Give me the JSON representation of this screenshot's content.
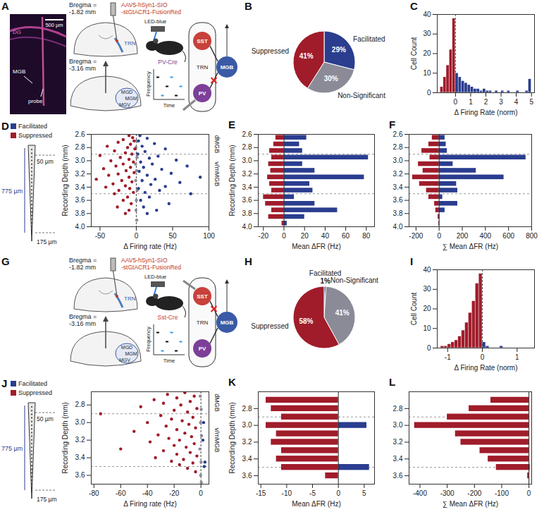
{
  "diagrams": [
    {
      "panel": "A",
      "image_labels": {
        "region": "DG",
        "target": "MGB",
        "track": "probe"
      },
      "scale_bar": "500 µm",
      "bregma": [
        "Bregma = -1.82 mm",
        "Bregma = -3.16 mm"
      ],
      "virus": [
        "AAV5-hSyn1-SIO",
        "-stGtACR1-FusionRed"
      ],
      "injection_site": "TRN",
      "subdivisions": [
        "MGD",
        "MGM",
        "MGV"
      ],
      "mouse_line": "PV-Cre",
      "light": "LED-blue",
      "raster_axes": [
        "Frequency",
        "Time"
      ],
      "circuit": {
        "nodes": [
          "SST",
          "PV",
          "MGB"
        ],
        "group": "TRN",
        "silenced": "PV"
      }
    },
    {
      "panel": "G",
      "bregma": [
        "Bregma = -1.82 mm",
        "Bregma = -3.16 mm"
      ],
      "virus": [
        "AAV5-hSyn1-SIO",
        "-stGtACR1-FusionRed"
      ],
      "injection_site": "TRN",
      "subdivisions": [
        "MGD",
        "MGM",
        "MGV"
      ],
      "mouse_line": "Sst-Cre",
      "light": "LED-blue",
      "raster_axes": [
        "Frequency",
        "Time"
      ],
      "circuit": {
        "nodes": [
          "SST",
          "PV",
          "MGB"
        ],
        "group": "TRN",
        "silenced": "SST"
      }
    }
  ],
  "chart_data": [
    {
      "panel": "B",
      "type": "pie",
      "categories": [
        "Facilitated",
        "Non-Significant",
        "Suppressed"
      ],
      "values": [
        29,
        30,
        41
      ],
      "value_labels": [
        "29%",
        "30%",
        "41%"
      ],
      "colors": [
        "#2a3d8f",
        "#8b8b98",
        "#a01c2a"
      ],
      "data_labels": true
    },
    {
      "panel": "C",
      "type": "histogram",
      "xlabel": "Δ Firing Rate (norm)",
      "ylabel": "Cell Count",
      "bins": [
        -1,
        -0.8,
        -0.6,
        -0.4,
        -0.2,
        0,
        0.2,
        0.4,
        0.6,
        0.8,
        1,
        1.2,
        1.4,
        1.6,
        1.8,
        2,
        2.2,
        2.4,
        2.6,
        2.8,
        3,
        3.2,
        3.4,
        3.6,
        3.8,
        4,
        4.2,
        4.4,
        4.6,
        4.8,
        5
      ],
      "series": [
        {
          "color": "#a01c2a",
          "values": [
            3,
            8,
            14,
            22,
            38,
            0,
            0,
            0,
            0,
            0,
            0,
            0,
            0,
            0,
            0,
            0,
            0,
            0,
            0,
            0,
            0,
            0,
            0,
            0,
            0,
            0,
            0,
            0,
            0,
            0
          ]
        },
        {
          "color": "#2a3d8f",
          "values": [
            0,
            0,
            0,
            0,
            0,
            10,
            8,
            6,
            5,
            4,
            3,
            2,
            2,
            1,
            2,
            1,
            1,
            0,
            1,
            0,
            1,
            0,
            1,
            0,
            0,
            1,
            0,
            0,
            1,
            7
          ]
        }
      ],
      "xlim": [
        -1.2,
        5.2
      ],
      "xticks": [
        0,
        1,
        2,
        3,
        4,
        5
      ],
      "ylim": [
        0,
        40
      ],
      "yticks": [
        0,
        10,
        20,
        30,
        40
      ],
      "reference_line": 0
    },
    {
      "panel": "D",
      "type": "scatter",
      "xlabel": "Δ Firing rate (Hz)",
      "ylabel": "Recording Depth (mm)",
      "legend": "top-left",
      "series": [
        {
          "color": "#8b8b98",
          "x": [
            0.5,
            -0.5,
            1,
            -1,
            0.3,
            -0.8,
            1.2,
            0,
            -0.4,
            0.6
          ],
          "y": [
            2.7,
            2.8,
            2.95,
            3.05,
            3.15,
            3.3,
            3.45,
            3.6,
            3.75,
            3.9
          ]
        },
        {
          "name": "Facilitated",
          "color": "#2a3d8f",
          "x": [
            5,
            15,
            3,
            25,
            8,
            40,
            12,
            2,
            30,
            18,
            55,
            6,
            22,
            70,
            10,
            35,
            4,
            48,
            15,
            88,
            26,
            8,
            60,
            20,
            40,
            3,
            32,
            12,
            75,
            18,
            6,
            45,
            10,
            28,
            15
          ],
          "y": [
            2.62,
            2.66,
            2.7,
            2.74,
            2.78,
            2.82,
            2.86,
            2.9,
            2.93,
            2.96,
            2.99,
            3.02,
            3.05,
            3.08,
            3.1,
            3.13,
            3.16,
            3.19,
            3.22,
            3.25,
            3.28,
            3.3,
            3.33,
            3.36,
            3.39,
            3.42,
            3.45,
            3.48,
            3.5,
            3.55,
            3.6,
            3.65,
            3.7,
            3.75,
            3.8
          ]
        },
        {
          "name": "Suppressed",
          "color": "#a01c2a",
          "x": [
            -10,
            -5,
            -18,
            -3,
            -25,
            -8,
            -40,
            -12,
            -2,
            -30,
            -15,
            -6,
            -50,
            -22,
            -10,
            -35,
            -4,
            -18,
            -28,
            -8,
            -45,
            -14,
            -3,
            -25,
            -38,
            -10,
            -55,
            -20,
            -6,
            -32,
            -15,
            -42,
            -9,
            -24,
            -4,
            -30,
            -12,
            -18,
            -7,
            -26,
            -10,
            -15
          ],
          "y": [
            2.62,
            2.65,
            2.68,
            2.7,
            2.72,
            2.75,
            2.78,
            2.8,
            2.82,
            2.85,
            2.88,
            2.9,
            2.92,
            2.95,
            2.98,
            3,
            3.02,
            3.05,
            3.08,
            3.1,
            3.12,
            3.15,
            3.18,
            3.2,
            3.22,
            3.25,
            3.28,
            3.3,
            3.32,
            3.35,
            3.38,
            3.4,
            3.42,
            3.45,
            3.48,
            3.5,
            3.55,
            3.6,
            3.65,
            3.7,
            3.75,
            3.8
          ]
        }
      ],
      "xlim": [
        -62,
        100
      ],
      "xticks": [
        -50,
        0,
        50,
        100
      ],
      "ylim": [
        2.6,
        4
      ],
      "yticks": [
        2.6,
        2.8,
        {
          "value": 3,
          "label": "3.0"
        },
        3.2,
        3.4,
        3.6,
        3.8,
        {
          "value": 4,
          "label": "4.0"
        }
      ],
      "boundaries": [
        2.9,
        3.5
      ],
      "regions": [
        {
          "label": "dMGB",
          "range": [
            2.6,
            2.9
          ]
        },
        {
          "label": "v/mMGB",
          "range": [
            2.9,
            3.5
          ]
        }
      ],
      "reference_line": 0,
      "probe": {
        "length": "775 µm",
        "spacing": "50 µm",
        "tip": "175 µm"
      }
    },
    {
      "panel": "E",
      "type": "bar",
      "orientation": "horizontal",
      "xlabel": "Mean ΔFR (Hz)",
      "ylabel": "Recording Depth (mm)",
      "y": [
        2.65,
        2.75,
        2.85,
        2.95,
        3.05,
        3.15,
        3.25,
        3.35,
        3.45,
        3.55,
        3.65,
        3.75,
        3.85,
        3.95
      ],
      "series": [
        {
          "color": "#a01c2a",
          "values": [
            -8,
            -10,
            -14,
            -12,
            -15,
            -13,
            -16,
            -14,
            -12,
            -20,
            -18,
            -12,
            -15,
            -2
          ]
        },
        {
          "color": "#2a3d8f",
          "values": [
            22,
            15,
            18,
            82,
            18,
            30,
            78,
            25,
            28,
            10,
            30,
            52,
            20,
            3
          ]
        }
      ],
      "xlim": [
        -25,
        88
      ],
      "xticks": [
        -20,
        0,
        20,
        40,
        60,
        80
      ],
      "ylim": [
        2.6,
        4
      ],
      "yticks": [
        2.6,
        2.8,
        {
          "value": 3,
          "label": "3.0"
        },
        3.2,
        3.4,
        3.6,
        3.8,
        {
          "value": 4,
          "label": "4.0"
        }
      ],
      "boundaries": [
        2.9,
        3.5
      ],
      "reference_line": 0
    },
    {
      "panel": "F",
      "type": "bar",
      "orientation": "horizontal",
      "xlabel": "∑ Mean ΔFR (Hz)",
      "y": [
        2.65,
        2.75,
        2.85,
        2.95,
        3.05,
        3.15,
        3.25,
        3.35,
        3.45,
        3.55,
        3.65,
        3.75,
        3.85,
        3.95
      ],
      "series": [
        {
          "color": "#a01c2a",
          "values": [
            -60,
            -90,
            -150,
            -80,
            -180,
            -140,
            -230,
            -170,
            -110,
            -90,
            -40,
            -30,
            -10,
            -5
          ]
        },
        {
          "color": "#2a3d8f",
          "values": [
            50,
            60,
            70,
            750,
            120,
            320,
            560,
            150,
            160,
            30,
            160,
            50,
            5,
            2
          ]
        }
      ],
      "xlim": [
        -260,
        800
      ],
      "xticks": [
        -200,
        0,
        200,
        400,
        600,
        800
      ],
      "ylim": [
        2.6,
        4
      ],
      "yticks": [
        2.6,
        2.8,
        {
          "value": 3,
          "label": "3.0"
        },
        3.2,
        3.4,
        3.6,
        3.8,
        {
          "value": 4,
          "label": "4.0"
        }
      ],
      "boundaries": [
        2.9,
        3.5
      ],
      "reference_line": 0
    },
    {
      "panel": "H",
      "type": "pie",
      "categories": [
        "Facilitated",
        "Non-Significant",
        "Suppressed"
      ],
      "values": [
        1,
        41,
        58
      ],
      "value_labels": [
        "1%",
        "41%",
        "58%"
      ],
      "colors": [
        "#2a3d8f",
        "#8b8b98",
        "#a01c2a"
      ],
      "data_labels": true
    },
    {
      "panel": "I",
      "type": "histogram",
      "xlabel": "Δ Firing Rate (norm)",
      "ylabel": "Cell Count",
      "bins": [
        -1.2,
        -1.1,
        -1,
        -0.9,
        -0.8,
        -0.7,
        -0.6,
        -0.5,
        -0.4,
        -0.3,
        -0.2,
        -0.1,
        0,
        0.1,
        0.2,
        0.3,
        0.4,
        0.5,
        0.6,
        0.7,
        0.8
      ],
      "series": [
        {
          "color": "#a01c2a",
          "values": [
            1,
            1,
            2,
            3,
            4,
            6,
            9,
            13,
            18,
            24,
            33,
            38,
            0,
            0,
            0,
            0,
            0,
            0,
            0,
            0
          ]
        },
        {
          "color": "#2a3d8f",
          "values": [
            0,
            0,
            0,
            0,
            0,
            0,
            0,
            0,
            0,
            0,
            0,
            0,
            3,
            1,
            0,
            0,
            0,
            1,
            0,
            0
          ]
        }
      ],
      "xlim": [
        -1.3,
        1.5
      ],
      "xticks": [
        -1,
        0,
        1
      ],
      "ylim": [
        0,
        40
      ],
      "yticks": [
        0,
        10,
        20,
        30,
        40
      ],
      "reference_line": 0
    },
    {
      "panel": "J",
      "type": "scatter",
      "xlabel": "Δ Firing rate (Hz)",
      "ylabel": "Recording Depth (mm)",
      "legend": "top-left",
      "series": [
        {
          "color": "#8b8b98",
          "x": [
            -0.5,
            0.2,
            -0.3,
            0.5,
            -0.8,
            0.1,
            -0.2,
            0.3
          ],
          "y": [
            2.7,
            2.85,
            3,
            3.15,
            3.3,
            3.45,
            3.6,
            3.68
          ]
        },
        {
          "name": "Facilitated",
          "color": "#2a3d8f",
          "x": [
            2,
            3,
            1.5,
            2.5
          ],
          "y": [
            3,
            3.45,
            3.2,
            3.5
          ]
        },
        {
          "name": "Suppressed",
          "color": "#a01c2a",
          "x": [
            -12,
            -25,
            -5,
            -18,
            -35,
            -8,
            -28,
            -15,
            -45,
            -3,
            -20,
            -10,
            -75,
            -30,
            -6,
            -22,
            -14,
            -40,
            -9,
            -26,
            -4,
            -18,
            -50,
            -12,
            -32,
            -7,
            -24,
            -16,
            -38,
            -5,
            -20,
            -11,
            -60,
            -28,
            -8,
            -18,
            -3,
            -34,
            -13,
            -22,
            -6,
            -16,
            -10,
            -4
          ],
          "y": [
            2.66,
            2.68,
            2.7,
            2.72,
            2.74,
            2.76,
            2.78,
            2.8,
            2.82,
            2.84,
            2.86,
            2.88,
            2.9,
            2.92,
            2.94,
            2.96,
            2.98,
            3,
            3.02,
            3.04,
            3.06,
            3.08,
            3.1,
            3.12,
            3.14,
            3.16,
            3.18,
            3.2,
            3.22,
            3.24,
            3.26,
            3.28,
            3.3,
            3.32,
            3.34,
            3.36,
            3.38,
            3.4,
            3.42,
            3.44,
            3.46,
            3.48,
            3.52,
            3.56
          ]
        }
      ],
      "xlim": [
        -82,
        6
      ],
      "xticks": [
        -80,
        -60,
        -40,
        -20,
        0
      ],
      "ylim": [
        2.65,
        3.7
      ],
      "yticks": [
        2.8,
        {
          "value": 3,
          "label": "3.0"
        },
        3.2,
        3.4,
        3.6
      ],
      "boundaries": [
        2.9,
        3.5
      ],
      "regions": [
        {
          "label": "dMGB",
          "range": [
            2.65,
            2.9
          ]
        },
        {
          "label": "v/mMGB",
          "range": [
            2.9,
            3.5
          ]
        }
      ],
      "reference_line": 0,
      "probe": {
        "length": "775 µm",
        "spacing": "50 µm",
        "tip": "175 µm"
      }
    },
    {
      "panel": "K",
      "type": "bar",
      "orientation": "horizontal",
      "xlabel": "Mean ΔFR (Hz)",
      "ylabel": "Recording Depth (mm)",
      "y": [
        2.7,
        2.8,
        2.9,
        3,
        3.1,
        3.2,
        3.3,
        3.4,
        3.5,
        3.6
      ],
      "series": [
        {
          "color": "#a01c2a",
          "values": [
            -14,
            -13,
            -11,
            -14,
            -12,
            -13,
            -11,
            -12,
            -11,
            -2.5
          ]
        },
        {
          "color": "#2a3d8f",
          "values": [
            0,
            0,
            0,
            5.5,
            0,
            0,
            0,
            0,
            6,
            0
          ]
        }
      ],
      "xlim": [
        -15.5,
        7
      ],
      "xticks": [
        -15,
        -10,
        -5,
        0,
        5
      ],
      "ylim": [
        2.6,
        3.7
      ],
      "yticks": [
        2.8,
        {
          "value": 3,
          "label": "3.0"
        },
        3.2,
        3.4,
        3.6
      ],
      "boundaries": [
        2.9,
        3.5
      ],
      "reference_line": 0
    },
    {
      "panel": "L",
      "type": "bar",
      "orientation": "horizontal",
      "xlabel": "∑ Mean ΔFR (Hz)",
      "y": [
        2.7,
        2.8,
        2.9,
        3,
        3.1,
        3.2,
        3.3,
        3.4,
        3.5,
        3.6
      ],
      "series": [
        {
          "color": "#a01c2a",
          "values": [
            -140,
            -220,
            -300,
            -420,
            -270,
            -250,
            -180,
            -150,
            -120,
            -5
          ]
        },
        {
          "color": "#2a3d8f",
          "values": [
            0,
            0,
            0,
            0,
            0,
            0,
            0,
            0,
            4,
            0
          ]
        }
      ],
      "xlim": [
        -440,
        10
      ],
      "xticks": [
        -400,
        -300,
        -200,
        -100,
        0
      ],
      "ylim": [
        2.6,
        3.7
      ],
      "yticks": [
        2.8,
        {
          "value": 3,
          "label": "3.0"
        },
        3.2,
        3.4,
        3.6
      ],
      "boundaries": [
        2.9,
        3.5
      ],
      "reference_line": 0
    }
  ]
}
